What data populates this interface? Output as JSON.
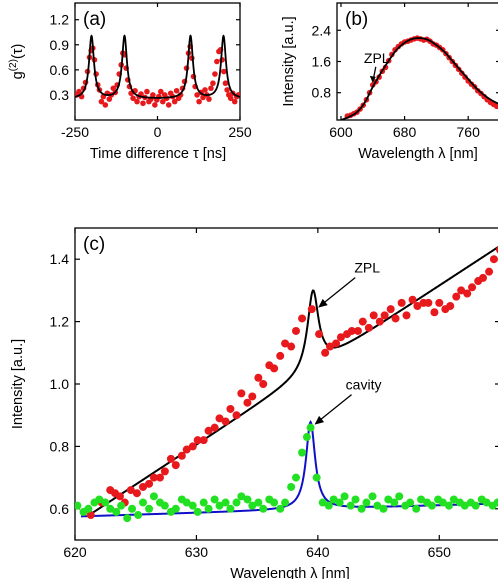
{
  "chart_data": [
    {
      "panel": "(a)",
      "type": "line",
      "xlabel": "Time difference τ [ns]",
      "ylabel": "g(2)(τ)",
      "ylabel_main": "g",
      "ylabel_sup": "(2)",
      "ylabel_tail": "(τ)",
      "xlim": [
        -250,
        250
      ],
      "ylim": [
        0.0,
        1.4
      ],
      "xticks": [
        -250,
        0,
        250
      ],
      "yticks": [
        0.3,
        0.6,
        0.9,
        1.2
      ],
      "xtick_labels": [
        "-250",
        "0",
        "250"
      ],
      "ytick_labels": [
        "0.3",
        "0.6",
        "0.9",
        "1.2"
      ],
      "series": [
        {
          "kind": "points",
          "color": "#e8191c",
          "x": [
            -245,
            -238,
            -230,
            -224,
            -218,
            -212,
            -206,
            -201,
            -196,
            -191,
            -186,
            -181,
            -176,
            -170,
            -164,
            -158,
            -152,
            -146,
            -140,
            -134,
            -128,
            -122,
            -116,
            -110,
            -105,
            -100,
            -95,
            -90,
            -85,
            -80,
            -74,
            -68,
            -62,
            -56,
            -50,
            -44,
            -38,
            -32,
            -26,
            -20,
            -14,
            -8,
            -2,
            4,
            10,
            16,
            22,
            28,
            34,
            40,
            46,
            52,
            58,
            64,
            70,
            76,
            82,
            88,
            94,
            99,
            104,
            109,
            114,
            120,
            126,
            132,
            138,
            144,
            150,
            156,
            162,
            168,
            174,
            180,
            186,
            191,
            196,
            201,
            206,
            211,
            216,
            222,
            228,
            234,
            240,
            245
          ],
          "y": [
            0.3,
            0.34,
            0.28,
            0.38,
            0.45,
            0.58,
            0.75,
            0.83,
            0.86,
            0.72,
            0.55,
            0.42,
            0.36,
            0.22,
            0.28,
            0.18,
            0.32,
            0.25,
            0.3,
            0.38,
            0.33,
            0.42,
            0.55,
            0.66,
            0.8,
            0.78,
            0.62,
            0.48,
            0.4,
            0.32,
            0.26,
            0.35,
            0.22,
            0.28,
            0.31,
            0.2,
            0.27,
            0.34,
            0.22,
            0.25,
            0.3,
            0.18,
            0.24,
            0.28,
            0.34,
            0.22,
            0.3,
            0.26,
            0.18,
            0.32,
            0.28,
            0.22,
            0.35,
            0.26,
            0.3,
            0.38,
            0.46,
            0.62,
            0.8,
            0.88,
            0.74,
            0.52,
            0.4,
            0.3,
            0.22,
            0.33,
            0.27,
            0.36,
            0.3,
            0.25,
            0.38,
            0.44,
            0.55,
            0.7,
            0.82,
            0.84,
            0.72,
            0.58,
            0.44,
            0.36,
            0.3,
            0.26,
            0.32,
            0.22,
            0.28,
            0.3
          ]
        },
        {
          "kind": "fit",
          "color": "#000000",
          "peaks": [
            -200,
            -100,
            100,
            200
          ],
          "amplitude": 0.75,
          "baseline": 0.25,
          "width": 9
        }
      ]
    },
    {
      "panel": "(b)",
      "type": "line",
      "xlabel": "Wavelength λ [nm]",
      "ylabel": "Intensity [a.u.]",
      "xlim": [
        595,
        800
      ],
      "ylim": [
        0.1,
        3.1
      ],
      "xticks": [
        600,
        680,
        760
      ],
      "yticks": [
        0.8,
        1.6,
        2.4
      ],
      "xtick_labels": [
        "600",
        "680",
        "760"
      ],
      "ytick_labels": [
        "0.8",
        "1.6",
        "2.4"
      ],
      "annotations": [
        {
          "text": "ZPL",
          "x": 640,
          "y": 1.0
        }
      ],
      "series": [
        {
          "kind": "points",
          "color": "#e8191c",
          "x": [
            608,
            612,
            616,
            620,
            624,
            628,
            632,
            636,
            640,
            644,
            648,
            652,
            656,
            660,
            664,
            668,
            672,
            676,
            680,
            684,
            688,
            692,
            696,
            700,
            704,
            708,
            712,
            716,
            720,
            724,
            728,
            732,
            736,
            740,
            744,
            748,
            752,
            756,
            760,
            764,
            768,
            772,
            776,
            780,
            784,
            788,
            792,
            796
          ],
          "y": [
            0.2,
            0.22,
            0.26,
            0.3,
            0.38,
            0.48,
            0.62,
            0.8,
            1.0,
            1.08,
            1.2,
            1.35,
            1.45,
            1.62,
            1.78,
            1.9,
            1.98,
            2.05,
            2.1,
            2.12,
            2.15,
            2.18,
            2.2,
            2.18,
            2.15,
            2.17,
            2.12,
            2.05,
            2.02,
            1.96,
            1.9,
            1.8,
            1.7,
            1.6,
            1.5,
            1.4,
            1.3,
            1.2,
            1.1,
            1.02,
            0.95,
            0.85,
            0.78,
            0.7,
            0.62,
            0.55,
            0.5,
            0.45
          ]
        },
        {
          "kind": "fit",
          "color": "#000000",
          "x": [
            600,
            610,
            620,
            630,
            640,
            650,
            660,
            670,
            680,
            690,
            700,
            710,
            720,
            730,
            740,
            750,
            760,
            770,
            780,
            790,
            800
          ],
          "y": [
            0.1,
            0.18,
            0.3,
            0.55,
            0.95,
            1.3,
            1.62,
            1.9,
            2.08,
            2.18,
            2.2,
            2.15,
            2.02,
            1.85,
            1.62,
            1.38,
            1.15,
            0.92,
            0.74,
            0.6,
            0.5
          ]
        }
      ]
    },
    {
      "panel": "(c)",
      "type": "line",
      "xlabel": "Wavelength λ [nm]",
      "ylabel": "Intensity [a.u.]",
      "xlim": [
        620,
        655
      ],
      "ylim": [
        0.5,
        1.5
      ],
      "xticks": [
        620,
        630,
        640,
        650
      ],
      "yticks": [
        0.6,
        0.8,
        1.0,
        1.2,
        1.4
      ],
      "xtick_labels": [
        "620",
        "630",
        "640",
        "650"
      ],
      "ytick_labels": [
        "0.6",
        "0.8",
        "1.0",
        "1.2",
        "1.4"
      ],
      "annotations": [
        {
          "text": "ZPL",
          "x": 639.7,
          "y": 1.235
        },
        {
          "text": "cavity",
          "x": 639.4,
          "y": 0.86
        }
      ],
      "series": [
        {
          "kind": "points",
          "name": "ZPL",
          "color": "#e8191c",
          "x": [
            621.3,
            622.2,
            622.9,
            623.3,
            623.7,
            624.1,
            624.6,
            625.1,
            625.6,
            626.1,
            626.5,
            627.0,
            627.4,
            627.9,
            628.3,
            628.8,
            629.2,
            629.7,
            630.1,
            630.6,
            631.0,
            631.5,
            631.9,
            632.4,
            632.8,
            633.3,
            633.7,
            634.2,
            634.6,
            635.1,
            635.5,
            636.0,
            636.4,
            636.9,
            637.3,
            637.8,
            638.2,
            638.7,
            639.5,
            640.1,
            640.6,
            641.0,
            641.5,
            641.9,
            642.4,
            642.8,
            643.3,
            643.7,
            644.2,
            644.6,
            645.1,
            645.5,
            646.0,
            646.4,
            646.9,
            647.3,
            647.8,
            648.2,
            648.7,
            649.1,
            649.6,
            650.0,
            650.5,
            650.9,
            651.4,
            651.8,
            652.3,
            652.7,
            653.2,
            653.6,
            654.1,
            654.5,
            655.0
          ],
          "y": [
            0.58,
            0.62,
            0.66,
            0.65,
            0.64,
            0.62,
            0.66,
            0.65,
            0.67,
            0.68,
            0.7,
            0.7,
            0.72,
            0.76,
            0.74,
            0.77,
            0.79,
            0.8,
            0.82,
            0.82,
            0.85,
            0.86,
            0.89,
            0.88,
            0.92,
            0.9,
            0.97,
            0.94,
            0.96,
            1.02,
            1.0,
            1.06,
            1.05,
            1.09,
            1.13,
            1.12,
            1.17,
            1.21,
            1.24,
            1.16,
            1.1,
            1.12,
            1.13,
            1.15,
            1.16,
            1.17,
            1.17,
            1.2,
            1.18,
            1.22,
            1.2,
            1.22,
            1.24,
            1.21,
            1.26,
            1.22,
            1.27,
            1.25,
            1.26,
            1.26,
            1.23,
            1.26,
            1.24,
            1.25,
            1.28,
            1.3,
            1.29,
            1.31,
            1.33,
            1.34,
            1.36,
            1.4,
            1.43
          ]
        },
        {
          "kind": "fit",
          "name": "ZPL fit",
          "color": "#000000",
          "x0": 639.6,
          "amplitude": 0.25,
          "width": 0.55,
          "base_slope": 0.0255,
          "base_intercept": 0.55,
          "x_start": 621.5
        },
        {
          "kind": "points",
          "name": "cavity",
          "color": "#22e022",
          "x": [
            620.2,
            620.7,
            621.1,
            621.6,
            622.0,
            622.5,
            622.9,
            623.4,
            623.8,
            624.3,
            624.7,
            625.2,
            625.6,
            626.1,
            626.5,
            627.0,
            627.4,
            627.9,
            628.3,
            628.8,
            629.2,
            629.7,
            630.1,
            630.6,
            631.0,
            631.5,
            631.9,
            632.4,
            632.8,
            633.3,
            633.7,
            634.2,
            634.6,
            635.1,
            635.5,
            636.0,
            636.4,
            636.9,
            637.3,
            637.8,
            638.2,
            638.7,
            639.1,
            639.4,
            639.9,
            640.4,
            640.9,
            641.3,
            641.8,
            642.2,
            642.7,
            643.1,
            643.6,
            644.0,
            644.5,
            644.9,
            645.4,
            645.8,
            646.3,
            646.7,
            647.2,
            647.6,
            648.1,
            648.5,
            649.0,
            649.4,
            649.9,
            650.3,
            650.8,
            651.2,
            651.7,
            652.1,
            652.6,
            653.0,
            653.5,
            653.9,
            654.4,
            654.8
          ],
          "y": [
            0.61,
            0.59,
            0.6,
            0.62,
            0.63,
            0.62,
            0.6,
            0.59,
            0.61,
            0.57,
            0.6,
            0.58,
            0.62,
            0.6,
            0.64,
            0.62,
            0.61,
            0.59,
            0.6,
            0.63,
            0.62,
            0.61,
            0.59,
            0.62,
            0.6,
            0.63,
            0.61,
            0.62,
            0.6,
            0.62,
            0.64,
            0.63,
            0.61,
            0.62,
            0.6,
            0.63,
            0.62,
            0.6,
            0.62,
            0.67,
            0.7,
            0.78,
            0.83,
            0.86,
            0.7,
            0.62,
            0.61,
            0.63,
            0.62,
            0.64,
            0.61,
            0.63,
            0.6,
            0.62,
            0.64,
            0.61,
            0.6,
            0.63,
            0.62,
            0.64,
            0.61,
            0.62,
            0.6,
            0.63,
            0.62,
            0.61,
            0.63,
            0.62,
            0.61,
            0.63,
            0.62,
            0.61,
            0.62,
            0.61,
            0.63,
            0.62,
            0.61,
            0.62
          ]
        },
        {
          "kind": "fit",
          "name": "cavity fit",
          "color": "#1010c8",
          "x0": 639.4,
          "amplitude": 0.28,
          "width": 0.45,
          "base_slope": 0.0012,
          "base_intercept": 0.575,
          "x_start": 620.5
        }
      ]
    }
  ]
}
